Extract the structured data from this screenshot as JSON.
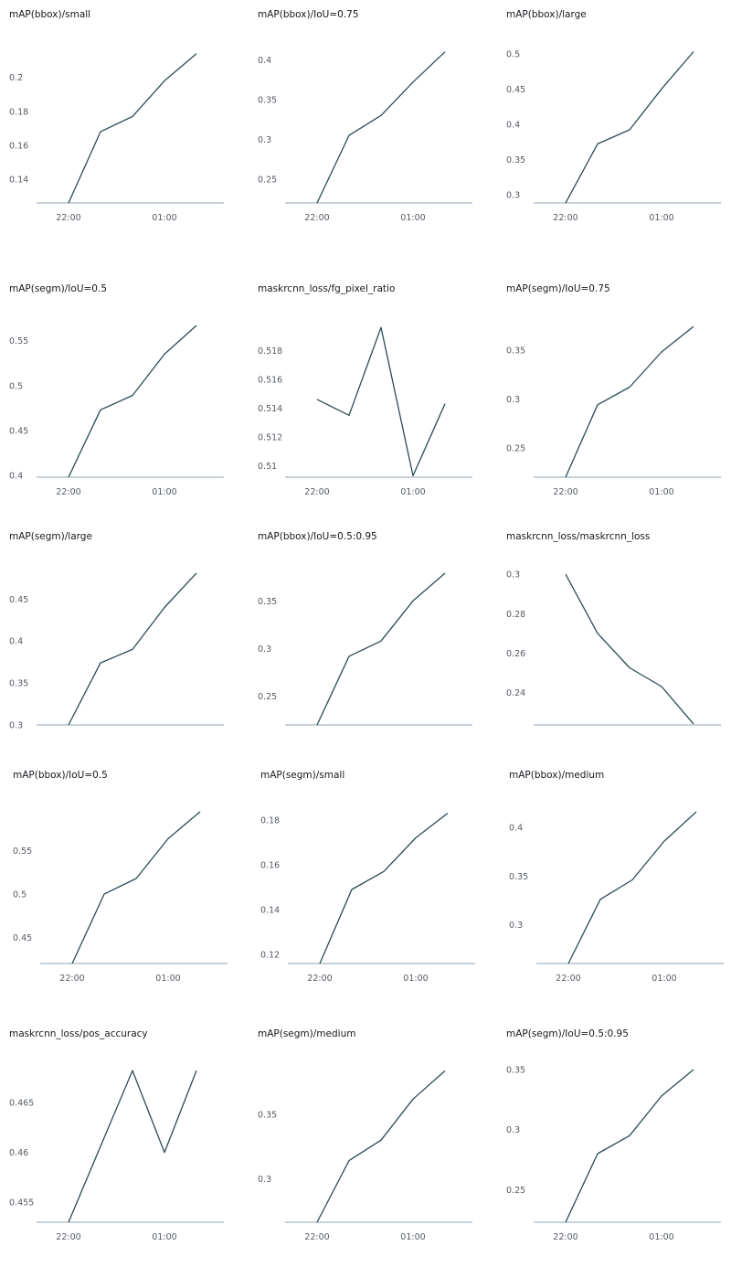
{
  "colors": {
    "line": "#2c4a56",
    "axis": "#8fa3b4",
    "tick_text": "#545b64",
    "title_text": "#16191f"
  },
  "chart_data": [
    {
      "type": "line",
      "title": "mAP(bbox)/small",
      "xticks": [
        "22:00",
        "01:00"
      ],
      "yticks": [
        "0.14",
        "0.16",
        "0.18",
        "0.2"
      ],
      "ylim": [
        0.126,
        0.216
      ],
      "x": [
        "22:00",
        "23:00",
        "00:00",
        "01:00",
        "02:00"
      ],
      "series": [
        {
          "values": [
            0.126,
            0.168,
            0.177,
            0.198,
            0.214
          ]
        }
      ]
    },
    {
      "type": "line",
      "title": "mAP(bbox)/IoU=0.75",
      "xticks": [
        "22:00",
        "01:00"
      ],
      "yticks": [
        "0.25",
        "0.3",
        "0.35",
        "0.4"
      ],
      "ylim": [
        0.22,
        0.412
      ],
      "x": [
        "22:00",
        "23:00",
        "00:00",
        "01:00",
        "02:00"
      ],
      "series": [
        {
          "values": [
            0.22,
            0.305,
            0.33,
            0.372,
            0.41
          ]
        }
      ]
    },
    {
      "type": "line",
      "title": "mAP(bbox)/large",
      "xticks": [
        "22:00",
        "01:00"
      ],
      "yticks": [
        "0.3",
        "0.35",
        "0.4",
        "0.45",
        "0.5"
      ],
      "ylim": [
        0.288,
        0.505
      ],
      "x": [
        "22:00",
        "23:00",
        "00:00",
        "01:00",
        "02:00"
      ],
      "series": [
        {
          "values": [
            0.288,
            0.372,
            0.392,
            0.45,
            0.503
          ]
        }
      ]
    },
    {
      "type": "line",
      "title": "mAP(segm)/IoU=0.5",
      "xticks": [
        "22:00",
        "01:00"
      ],
      "yticks": [
        "0.4",
        "0.45",
        "0.5",
        "0.55"
      ],
      "ylim": [
        0.398,
        0.568
      ],
      "x": [
        "22:00",
        "23:00",
        "00:00",
        "01:00",
        "02:00"
      ],
      "series": [
        {
          "values": [
            0.398,
            0.473,
            0.489,
            0.535,
            0.567
          ]
        }
      ]
    },
    {
      "type": "line",
      "title": "maskrcnn_loss/fg_pixel_ratio",
      "xticks": [
        "22:00",
        "01:00"
      ],
      "yticks": [
        "0.51",
        "0.512",
        "0.514",
        "0.516",
        "0.518"
      ],
      "ylim": [
        0.5092,
        0.5198
      ],
      "x": [
        "22:00",
        "23:00",
        "00:00",
        "01:00",
        "02:00"
      ],
      "series": [
        {
          "values": [
            0.5146,
            0.5135,
            0.5196,
            0.5093,
            0.5143
          ]
        }
      ]
    },
    {
      "type": "line",
      "title": "mAP(segm)/IoU=0.75",
      "xticks": [
        "22:00",
        "01:00"
      ],
      "yticks": [
        "0.25",
        "0.3",
        "0.35"
      ],
      "ylim": [
        0.22,
        0.376
      ],
      "x": [
        "22:00",
        "23:00",
        "00:00",
        "01:00",
        "02:00"
      ],
      "series": [
        {
          "values": [
            0.22,
            0.294,
            0.312,
            0.348,
            0.374
          ]
        }
      ]
    },
    {
      "type": "line",
      "title": "mAP(segm)/large",
      "xticks": [],
      "yticks": [
        "0.3",
        "0.35",
        "0.4",
        "0.45"
      ],
      "ylim": [
        0.3,
        0.482
      ],
      "x": [
        "22:00",
        "23:00",
        "00:00",
        "01:00",
        "02:00"
      ],
      "series": [
        {
          "values": [
            0.3,
            0.374,
            0.39,
            0.44,
            0.481
          ]
        }
      ]
    },
    {
      "type": "line",
      "title": "mAP(bbox)/IoU=0.5:0.95",
      "xticks": [],
      "yticks": [
        "0.25",
        "0.3",
        "0.35"
      ],
      "ylim": [
        0.22,
        0.38
      ],
      "x": [
        "22:00",
        "23:00",
        "00:00",
        "01:00",
        "02:00"
      ],
      "series": [
        {
          "values": [
            0.22,
            0.292,
            0.308,
            0.35,
            0.379
          ]
        }
      ]
    },
    {
      "type": "line",
      "title": "maskrcnn_loss/maskrcnn_loss",
      "xticks": [],
      "yticks": [
        "0.24",
        "0.26",
        "0.28",
        "0.3"
      ],
      "ylim": [
        0.2235,
        0.301
      ],
      "x": [
        "22:00",
        "23:00",
        "00:00",
        "01:00",
        "02:00"
      ],
      "series": [
        {
          "values": [
            0.3,
            0.27,
            0.2525,
            0.243,
            0.224
          ]
        }
      ]
    },
    {
      "type": "line",
      "title": "mAP(bbox)/IoU=0.5",
      "xticks": [
        "22:00",
        "01:00"
      ],
      "yticks": [
        "0.45",
        "0.5",
        "0.55"
      ],
      "ylim": [
        0.42,
        0.596
      ],
      "x": [
        "22:00",
        "23:00",
        "00:00",
        "01:00",
        "02:00"
      ],
      "series": [
        {
          "values": [
            0.42,
            0.5,
            0.518,
            0.564,
            0.595
          ]
        }
      ]
    },
    {
      "type": "line",
      "title": "mAP(segm)/small",
      "xticks": [
        "22:00",
        "01:00"
      ],
      "yticks": [
        "0.12",
        "0.14",
        "0.16",
        "0.18"
      ],
      "ylim": [
        0.116,
        0.184
      ],
      "x": [
        "22:00",
        "23:00",
        "00:00",
        "01:00",
        "02:00"
      ],
      "series": [
        {
          "values": [
            0.116,
            0.149,
            0.157,
            0.172,
            0.183
          ]
        }
      ]
    },
    {
      "type": "line",
      "title": "mAP(bbox)/medium",
      "xticks": [
        "22:00",
        "01:00"
      ],
      "yticks": [
        "0.3",
        "0.35",
        "0.4"
      ],
      "ylim": [
        0.26,
        0.417
      ],
      "x": [
        "22:00",
        "23:00",
        "00:00",
        "01:00",
        "02:00"
      ],
      "series": [
        {
          "values": [
            0.26,
            0.326,
            0.346,
            0.386,
            0.416
          ]
        }
      ]
    },
    {
      "type": "line",
      "title": "maskrcnn_loss/pos_accuracy",
      "xticks": [
        "22:00",
        "01:00"
      ],
      "yticks": [
        "0.455",
        "0.46",
        "0.465"
      ],
      "ylim": [
        0.453,
        0.4683
      ],
      "x": [
        "22:00",
        "23:00",
        "00:00",
        "01:00",
        "02:00"
      ],
      "series": [
        {
          "values": [
            0.453,
            0.4606,
            0.4682,
            0.46,
            0.4682
          ]
        }
      ]
    },
    {
      "type": "line",
      "title": "mAP(segm)/medium",
      "xticks": [
        "22:00",
        "01:00"
      ],
      "yticks": [
        "0.3",
        "0.35"
      ],
      "ylim": [
        0.266,
        0.385
      ],
      "x": [
        "22:00",
        "23:00",
        "00:00",
        "01:00",
        "02:00"
      ],
      "series": [
        {
          "values": [
            0.266,
            0.314,
            0.33,
            0.362,
            0.384
          ]
        }
      ]
    },
    {
      "type": "line",
      "title": "mAP(segm)/IoU=0.5:0.95",
      "xticks": [
        "22:00",
        "01:00"
      ],
      "yticks": [
        "0.25",
        "0.3",
        "0.35"
      ],
      "ylim": [
        0.223,
        0.35
      ],
      "x": [
        "22:00",
        "23:00",
        "00:00",
        "01:00",
        "02:00"
      ],
      "series": [
        {
          "values": [
            0.223,
            0.28,
            0.295,
            0.328,
            0.35
          ]
        }
      ]
    }
  ]
}
